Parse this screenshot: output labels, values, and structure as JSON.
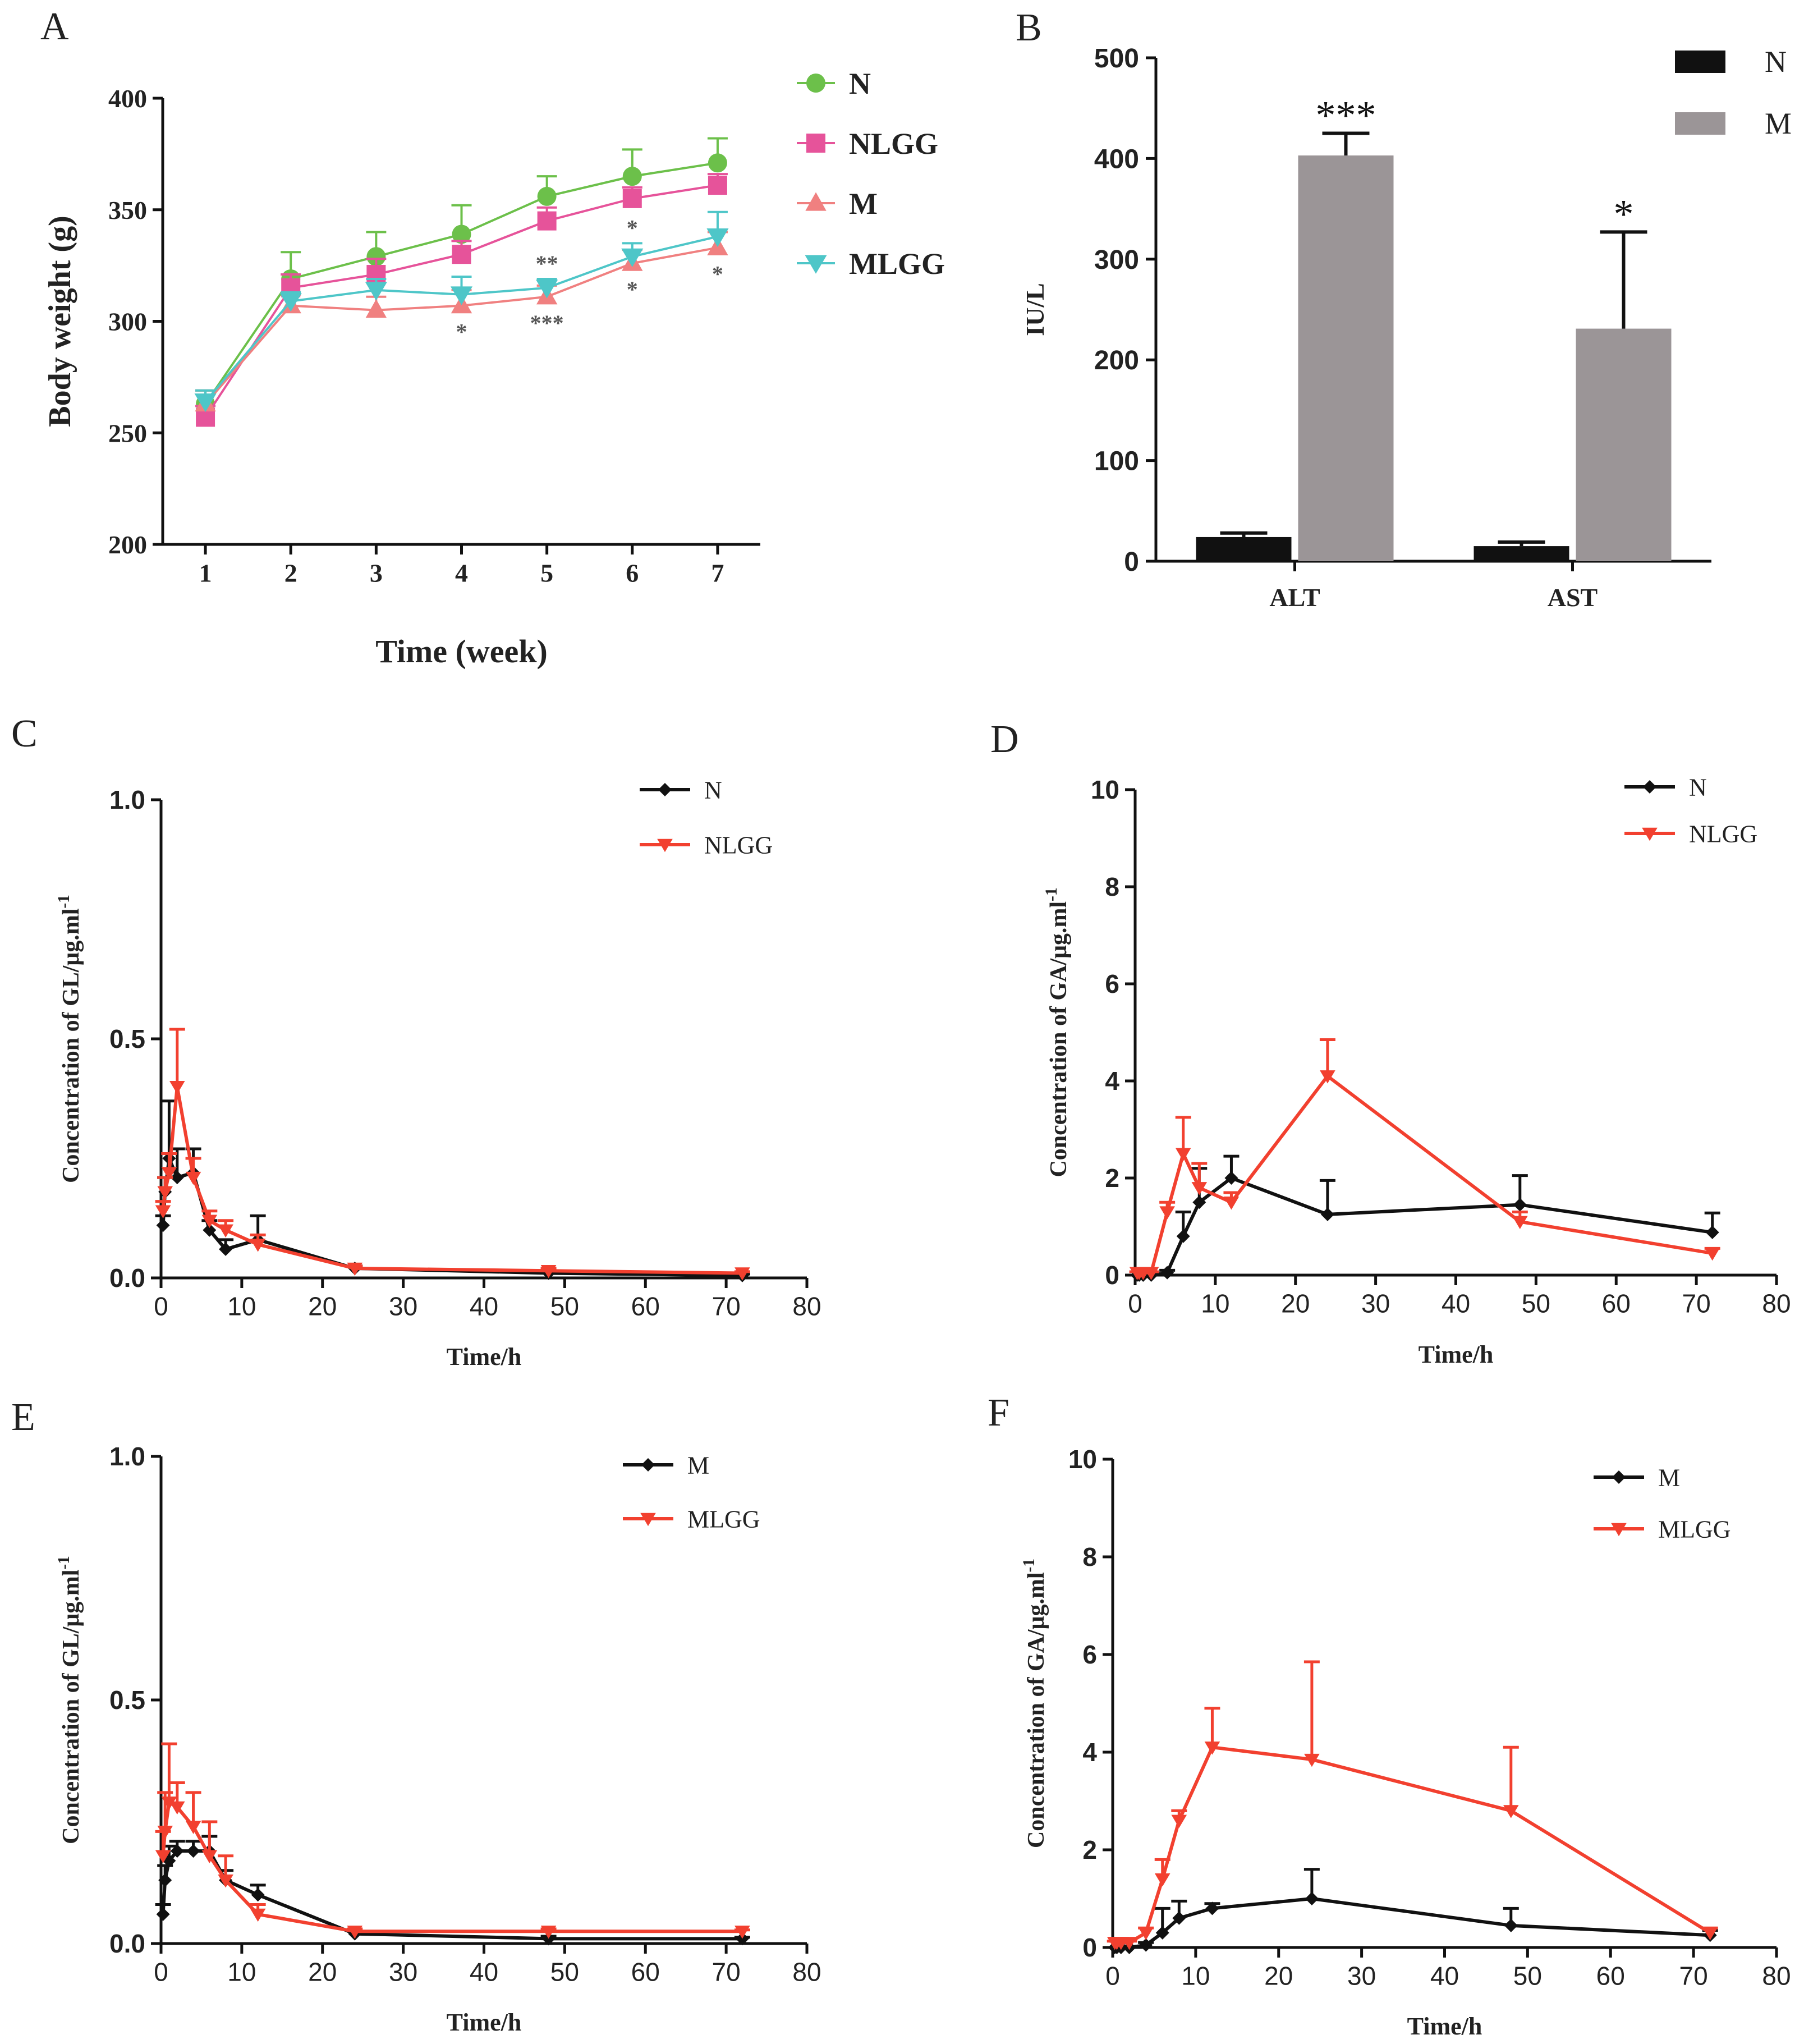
{
  "chart_data": [
    {
      "id": "A",
      "panel_label": "A",
      "type": "line",
      "title": "",
      "xlabel": "Time (week)",
      "ylabel": "Body weight (g)",
      "xlim": [
        0.5,
        7.5
      ],
      "ylim": [
        200,
        400
      ],
      "xticks": [
        1,
        2,
        3,
        4,
        5,
        6,
        7
      ],
      "yticks": [
        200,
        250,
        300,
        350,
        400
      ],
      "x": [
        1,
        2,
        3,
        4,
        5,
        6,
        7
      ],
      "series": [
        {
          "name": "N",
          "marker": "circle",
          "color": "#6cc04a",
          "values": [
            263,
            319,
            329,
            339,
            356,
            365,
            371
          ],
          "err": [
            6,
            12,
            11,
            13,
            9,
            12,
            11
          ]
        },
        {
          "name": "NLGG",
          "marker": "square",
          "color": "#e6539a",
          "values": [
            257,
            315,
            321,
            330,
            345,
            355,
            361
          ],
          "err": [
            5,
            6,
            7,
            6,
            6,
            5,
            5
          ]
        },
        {
          "name": "M",
          "marker": "triangle-up",
          "color": "#f08080",
          "values": [
            263,
            307,
            305,
            307,
            311,
            326,
            333
          ],
          "err": [
            6,
            5,
            6,
            7,
            5,
            6,
            7
          ]
        },
        {
          "name": "MLGG",
          "marker": "triangle-down",
          "color": "#4ec6c8",
          "values": [
            264,
            309,
            314,
            312,
            315,
            329,
            338
          ],
          "err": [
            5,
            4,
            5,
            8,
            4,
            6,
            11
          ]
        }
      ],
      "annotations": [
        {
          "x": 4,
          "text": "*",
          "series": "M",
          "pos": "below"
        },
        {
          "x": 5,
          "text": "**",
          "series": "MLGG",
          "pos": "above"
        },
        {
          "x": 5,
          "text": "***",
          "series": "M",
          "pos": "below"
        },
        {
          "x": 6,
          "text": "*",
          "series": "MLGG",
          "pos": "above"
        },
        {
          "x": 6,
          "text": "*",
          "series": "M",
          "pos": "below"
        },
        {
          "x": 7,
          "text": "*",
          "series": "M",
          "pos": "below"
        }
      ],
      "legend": "top-right"
    },
    {
      "id": "B",
      "panel_label": "B",
      "type": "bar",
      "title": "",
      "xlabel": "",
      "ylabel": "IU/L",
      "ylim": [
        0,
        500
      ],
      "yticks": [
        0,
        100,
        200,
        300,
        400,
        500
      ],
      "categories": [
        "ALT",
        "AST"
      ],
      "series": [
        {
          "name": "N",
          "color": "#111111",
          "values": [
            24,
            15
          ],
          "err": [
            4,
            4
          ]
        },
        {
          "name": "M",
          "color": "#9b9597",
          "values": [
            403,
            231
          ],
          "err": [
            22,
            96
          ]
        }
      ],
      "annotations": [
        {
          "category": "ALT",
          "series": "M",
          "text": "***"
        },
        {
          "category": "AST",
          "series": "M",
          "text": "*"
        }
      ],
      "legend": "top-right"
    },
    {
      "id": "C",
      "panel_label": "C",
      "type": "line",
      "title": "",
      "xlabel": "Time/h",
      "ylabel": "Concentration of GL/μg.ml",
      "ylabel_sup": "-1",
      "xlim": [
        0,
        80
      ],
      "ylim": [
        0,
        1.0
      ],
      "xticks": [
        0,
        10,
        20,
        30,
        40,
        50,
        60,
        70,
        80
      ],
      "yticks": [
        0.0,
        0.5,
        1.0
      ],
      "series": [
        {
          "name": "N",
          "marker": "diamond",
          "color": "#111111",
          "x": [
            0.25,
            0.5,
            1,
            2,
            4,
            6,
            8,
            12,
            24,
            48,
            72
          ],
          "values": [
            0.11,
            0.18,
            0.25,
            0.21,
            0.22,
            0.1,
            0.06,
            0.08,
            0.02,
            0.01,
            0.005
          ],
          "err": [
            0.02,
            0.03,
            0.12,
            0.06,
            0.05,
            0.02,
            0.02,
            0.05,
            0.005,
            0.005,
            0.003
          ]
        },
        {
          "name": "NLGG",
          "marker": "triangle-down",
          "color": "#f2402f",
          "x": [
            0.25,
            0.5,
            1,
            2,
            4,
            6,
            8,
            12,
            24,
            48,
            72
          ],
          "values": [
            0.14,
            0.18,
            0.22,
            0.4,
            0.21,
            0.12,
            0.1,
            0.07,
            0.02,
            0.015,
            0.01
          ],
          "err": [
            0.02,
            0.03,
            0.04,
            0.12,
            0.04,
            0.02,
            0.02,
            0.02,
            0.005,
            0.005,
            0.003
          ]
        }
      ],
      "legend": "top-right"
    },
    {
      "id": "D",
      "panel_label": "D",
      "type": "line",
      "title": "",
      "xlabel": "Time/h",
      "ylabel": "Concentration of GA/μg.ml",
      "ylabel_sup": "-1",
      "xlim": [
        0,
        80
      ],
      "ylim": [
        0,
        10
      ],
      "xticks": [
        0,
        10,
        20,
        30,
        40,
        50,
        60,
        70,
        80
      ],
      "yticks": [
        0,
        2,
        4,
        6,
        8,
        10
      ],
      "series": [
        {
          "name": "N",
          "marker": "diamond",
          "color": "#111111",
          "x": [
            0.25,
            0.5,
            1,
            2,
            4,
            6,
            8,
            12,
            24,
            48,
            72
          ],
          "values": [
            0,
            0,
            0,
            0,
            0.05,
            0.8,
            1.5,
            2.0,
            1.25,
            1.45,
            0.88
          ],
          "err": [
            0,
            0,
            0,
            0,
            0.05,
            0.5,
            0.7,
            0.45,
            0.7,
            0.6,
            0.4
          ]
        },
        {
          "name": "NLGG",
          "marker": "triangle-down",
          "color": "#f2402f",
          "x": [
            0.25,
            0.5,
            1,
            2,
            4,
            6,
            8,
            12,
            24,
            48,
            72
          ],
          "values": [
            0.05,
            0.05,
            0.05,
            0.05,
            1.3,
            2.5,
            1.8,
            1.5,
            4.1,
            1.1,
            0.45
          ],
          "err": [
            0.02,
            0.02,
            0.02,
            0.02,
            0.2,
            0.75,
            0.5,
            0.2,
            0.75,
            0.2,
            0.1
          ]
        }
      ],
      "legend": "top-right"
    },
    {
      "id": "E",
      "panel_label": "E",
      "type": "line",
      "title": "",
      "xlabel": "Time/h",
      "ylabel": "Concentration of GL/μg.ml",
      "ylabel_sup": "-1",
      "xlim": [
        0,
        80
      ],
      "ylim": [
        0,
        1.0
      ],
      "xticks": [
        0,
        10,
        20,
        30,
        40,
        50,
        60,
        70,
        80
      ],
      "yticks": [
        0.0,
        0.5,
        1.0
      ],
      "series": [
        {
          "name": "M",
          "marker": "diamond",
          "color": "#111111",
          "x": [
            0.25,
            0.5,
            1,
            2,
            4,
            6,
            8,
            12,
            24,
            48,
            72
          ],
          "values": [
            0.06,
            0.13,
            0.17,
            0.19,
            0.19,
            0.19,
            0.13,
            0.1,
            0.02,
            0.01,
            0.01
          ],
          "err": [
            0.02,
            0.03,
            0.03,
            0.02,
            0.02,
            0.03,
            0.02,
            0.02,
            0.005,
            0.005,
            0.003
          ]
        },
        {
          "name": "MLGG",
          "marker": "triangle-down",
          "color": "#f2402f",
          "x": [
            0.25,
            0.5,
            1,
            2,
            4,
            6,
            8,
            12,
            24,
            48,
            72
          ],
          "values": [
            0.18,
            0.23,
            0.29,
            0.28,
            0.24,
            0.18,
            0.13,
            0.06,
            0.025,
            0.025,
            0.025
          ],
          "err": [
            0.05,
            0.08,
            0.12,
            0.05,
            0.07,
            0.07,
            0.05,
            0.02,
            0.005,
            0.005,
            0.003
          ]
        }
      ],
      "legend": "top-right"
    },
    {
      "id": "F",
      "panel_label": "F",
      "type": "line",
      "title": "",
      "xlabel": "Time/h",
      "ylabel": "Concentration of GA/μg.ml",
      "ylabel_sup": "-1",
      "xlim": [
        0,
        80
      ],
      "ylim": [
        0,
        10
      ],
      "xticks": [
        0,
        10,
        20,
        30,
        40,
        50,
        60,
        70,
        80
      ],
      "yticks": [
        0,
        2,
        4,
        6,
        8,
        10
      ],
      "series": [
        {
          "name": "M",
          "marker": "diamond",
          "color": "#111111",
          "x": [
            0.25,
            0.5,
            1,
            2,
            4,
            6,
            8,
            12,
            24,
            48,
            72
          ],
          "values": [
            0,
            0,
            0,
            0,
            0.05,
            0.3,
            0.6,
            0.8,
            1.0,
            0.45,
            0.25
          ],
          "err": [
            0,
            0,
            0,
            0,
            0.05,
            0.5,
            0.35,
            0.1,
            0.6,
            0.35,
            0.1
          ]
        },
        {
          "name": "MLGG",
          "marker": "triangle-down",
          "color": "#f2402f",
          "x": [
            0.25,
            0.5,
            1,
            2,
            4,
            6,
            8,
            12,
            24,
            48,
            72
          ],
          "values": [
            0.1,
            0.1,
            0.1,
            0.1,
            0.3,
            1.4,
            2.6,
            4.1,
            3.85,
            2.8,
            0.3
          ],
          "err": [
            0.03,
            0.03,
            0.03,
            0.03,
            0.1,
            0.4,
            0.2,
            0.8,
            2.0,
            1.3,
            0.1
          ]
        }
      ],
      "legend": "top-right"
    }
  ]
}
